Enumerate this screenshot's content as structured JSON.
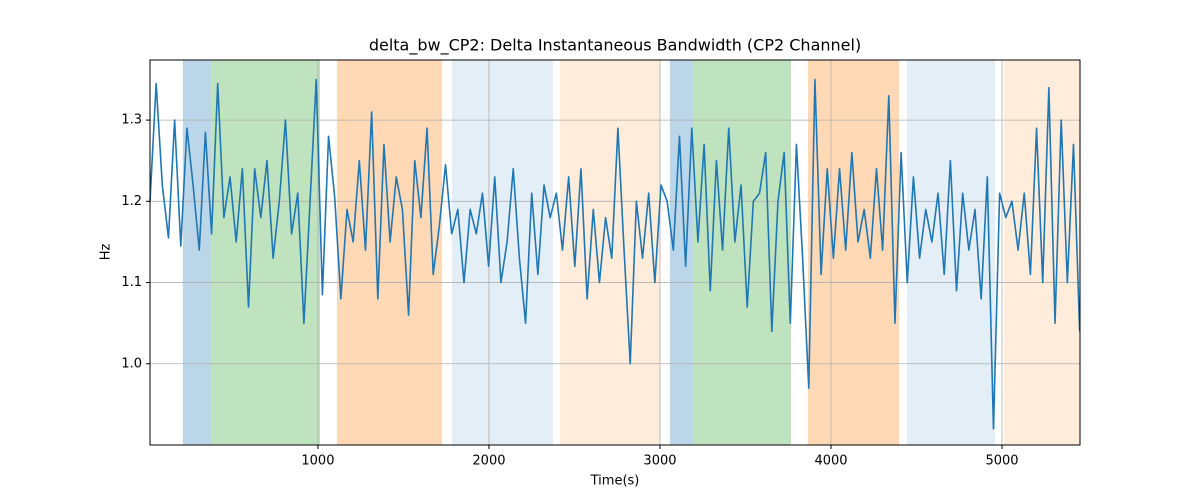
{
  "chart_data": {
    "type": "line",
    "title": "delta_bw_CP2: Delta Instantaneous Bandwidth (CP2 Channel)",
    "x_label": "Time(s)",
    "y_label": "Hz",
    "xlim": [
      18,
      5456
    ],
    "ylim": [
      0.9,
      1.374
    ],
    "xticks": [
      1000,
      2000,
      3000,
      4000,
      5000
    ],
    "yticks": [
      {
        "value": 1,
        "label": "1.0"
      },
      1.1,
      1.2,
      1.3
    ],
    "grid": true,
    "spans": [
      {
        "x0": 210,
        "x1": 374,
        "color": "#1f77b4",
        "alpha": 0.3
      },
      {
        "x0": 374,
        "x1": 1012,
        "color": "#2ca02c",
        "alpha": 0.3
      },
      {
        "x0": 1111,
        "x1": 1725,
        "color": "#ff7f0e",
        "alpha": 0.3
      },
      {
        "x0": 1784,
        "x1": 2374,
        "color": "#1f77b4",
        "alpha": 0.12
      },
      {
        "x0": 2415,
        "x1": 3000,
        "color": "#ff7f0e",
        "alpha": 0.15
      },
      {
        "x0": 3058,
        "x1": 3193,
        "color": "#1f77b4",
        "alpha": 0.3
      },
      {
        "x0": 3193,
        "x1": 3766,
        "color": "#2ca02c",
        "alpha": 0.3
      },
      {
        "x0": 3865,
        "x1": 4398,
        "color": "#ff7f0e",
        "alpha": 0.3
      },
      {
        "x0": 4444,
        "x1": 4959,
        "color": "#1f77b4",
        "alpha": 0.12
      },
      {
        "x0": 5012,
        "x1": 5456,
        "color": "#ff7f0e",
        "alpha": 0.15
      }
    ],
    "x": [
      18,
      54,
      90,
      126,
      162,
      198,
      234,
      270,
      306,
      342,
      378,
      414,
      450,
      486,
      522,
      558,
      594,
      630,
      666,
      702,
      738,
      774,
      810,
      846,
      882,
      918,
      954,
      990,
      1026,
      1062,
      1098,
      1134,
      1170,
      1206,
      1242,
      1278,
      1314,
      1350,
      1386,
      1422,
      1458,
      1494,
      1530,
      1566,
      1602,
      1638,
      1674,
      1710,
      1746,
      1782,
      1818,
      1854,
      1890,
      1926,
      1962,
      1998,
      2034,
      2070,
      2106,
      2142,
      2178,
      2214,
      2250,
      2286,
      2322,
      2358,
      2394,
      2430,
      2466,
      2502,
      2538,
      2574,
      2610,
      2646,
      2682,
      2718,
      2754,
      2790,
      2826,
      2862,
      2898,
      2934,
      2970,
      3006,
      3042,
      3078,
      3114,
      3150,
      3186,
      3222,
      3258,
      3294,
      3330,
      3366,
      3402,
      3438,
      3474,
      3510,
      3546,
      3582,
      3618,
      3654,
      3690,
      3726,
      3762,
      3798,
      3834,
      3870,
      3906,
      3942,
      3978,
      4014,
      4050,
      4086,
      4122,
      4158,
      4194,
      4230,
      4266,
      4302,
      4338,
      4374,
      4410,
      4446,
      4482,
      4518,
      4554,
      4590,
      4626,
      4662,
      4698,
      4734,
      4770,
      4806,
      4842,
      4878,
      4914,
      4950,
      4986,
      5022,
      5058,
      5094,
      5130,
      5166,
      5202,
      5238,
      5274,
      5310,
      5346,
      5382,
      5418,
      5454
    ],
    "series": [
      {
        "color": "#1f77b4",
        "values": [
          1.2,
          1.345,
          1.22,
          1.155,
          1.3,
          1.145,
          1.29,
          1.22,
          1.14,
          1.285,
          1.16,
          1.345,
          1.18,
          1.23,
          1.15,
          1.24,
          1.07,
          1.24,
          1.18,
          1.25,
          1.13,
          1.2,
          1.3,
          1.16,
          1.21,
          1.05,
          1.2,
          1.35,
          1.085,
          1.28,
          1.205,
          1.08,
          1.19,
          1.15,
          1.25,
          1.14,
          1.31,
          1.08,
          1.27,
          1.15,
          1.23,
          1.19,
          1.06,
          1.25,
          1.18,
          1.29,
          1.11,
          1.17,
          1.245,
          1.16,
          1.19,
          1.1,
          1.19,
          1.16,
          1.21,
          1.12,
          1.23,
          1.1,
          1.15,
          1.24,
          1.13,
          1.05,
          1.21,
          1.11,
          1.22,
          1.18,
          1.21,
          1.14,
          1.23,
          1.12,
          1.24,
          1.08,
          1.19,
          1.1,
          1.18,
          1.13,
          1.29,
          1.14,
          1.0,
          1.2,
          1.13,
          1.21,
          1.1,
          1.22,
          1.2,
          1.14,
          1.28,
          1.12,
          1.29,
          1.15,
          1.27,
          1.09,
          1.25,
          1.14,
          1.29,
          1.15,
          1.22,
          1.07,
          1.2,
          1.21,
          1.26,
          1.04,
          1.2,
          1.26,
          1.05,
          1.27,
          1.13,
          0.97,
          1.35,
          1.11,
          1.24,
          1.13,
          1.24,
          1.14,
          1.26,
          1.15,
          1.19,
          1.13,
          1.24,
          1.14,
          1.33,
          1.05,
          1.26,
          1.1,
          1.23,
          1.13,
          1.19,
          1.15,
          1.21,
          1.11,
          1.25,
          1.09,
          1.21,
          1.14,
          1.19,
          1.08,
          1.23,
          0.92,
          1.21,
          1.18,
          1.2,
          1.14,
          1.21,
          1.11,
          1.29,
          1.1,
          1.34,
          1.05,
          1.3,
          1.1,
          1.27,
          1.04
        ]
      }
    ]
  }
}
